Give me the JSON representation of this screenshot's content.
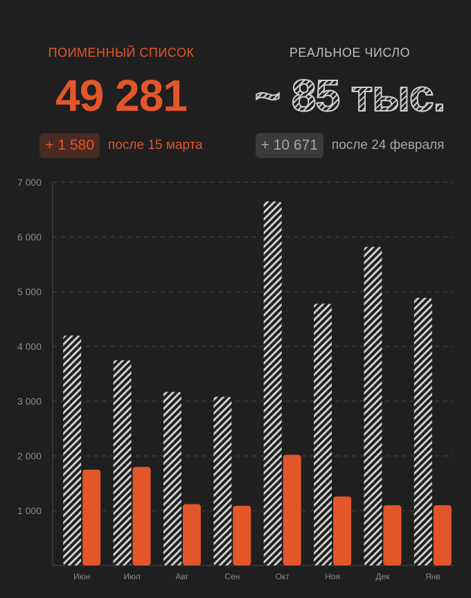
{
  "left_stat": {
    "label": "ПОИМЕННЫЙ СПИСОК",
    "value": "49 281",
    "delta": "+ 1 580",
    "delta_note": "после 15 марта"
  },
  "right_stat": {
    "label": "РЕАЛЬНОЕ ЧИСЛО",
    "value": "~ 85 тыс.",
    "delta": "+ 10 671",
    "delta_note": "после 24 февраля"
  },
  "colors": {
    "background": "#1f1f1f",
    "accent": "#e3562a",
    "hatch": "#cfcfcf",
    "grid": "#4a4a4a",
    "tick_text": "#8a8a8a"
  },
  "chart_data": {
    "type": "bar",
    "categories": [
      "Июн",
      "Июл",
      "Авг",
      "Сен",
      "Окт",
      "Ноя",
      "Дек",
      "Янв"
    ],
    "series": [
      {
        "style": "hatched",
        "values": [
          4200,
          3750,
          3170,
          3080,
          6650,
          4780,
          5820,
          4890
        ]
      },
      {
        "style": "solid",
        "values": [
          1750,
          1800,
          1120,
          1090,
          2020,
          1260,
          1100,
          1100
        ]
      }
    ],
    "y_ticks": [
      {
        "value": 1000,
        "label": "1 000"
      },
      {
        "value": 2000,
        "label": "2 000"
      },
      {
        "value": 3000,
        "label": "3 000"
      },
      {
        "value": 4000,
        "label": "4 000"
      },
      {
        "value": 5000,
        "label": "5 000"
      },
      {
        "value": 6000,
        "label": "6 000"
      },
      {
        "value": 7000,
        "label": "7 000"
      }
    ],
    "ylim": [
      0,
      7000
    ],
    "grid": true
  }
}
